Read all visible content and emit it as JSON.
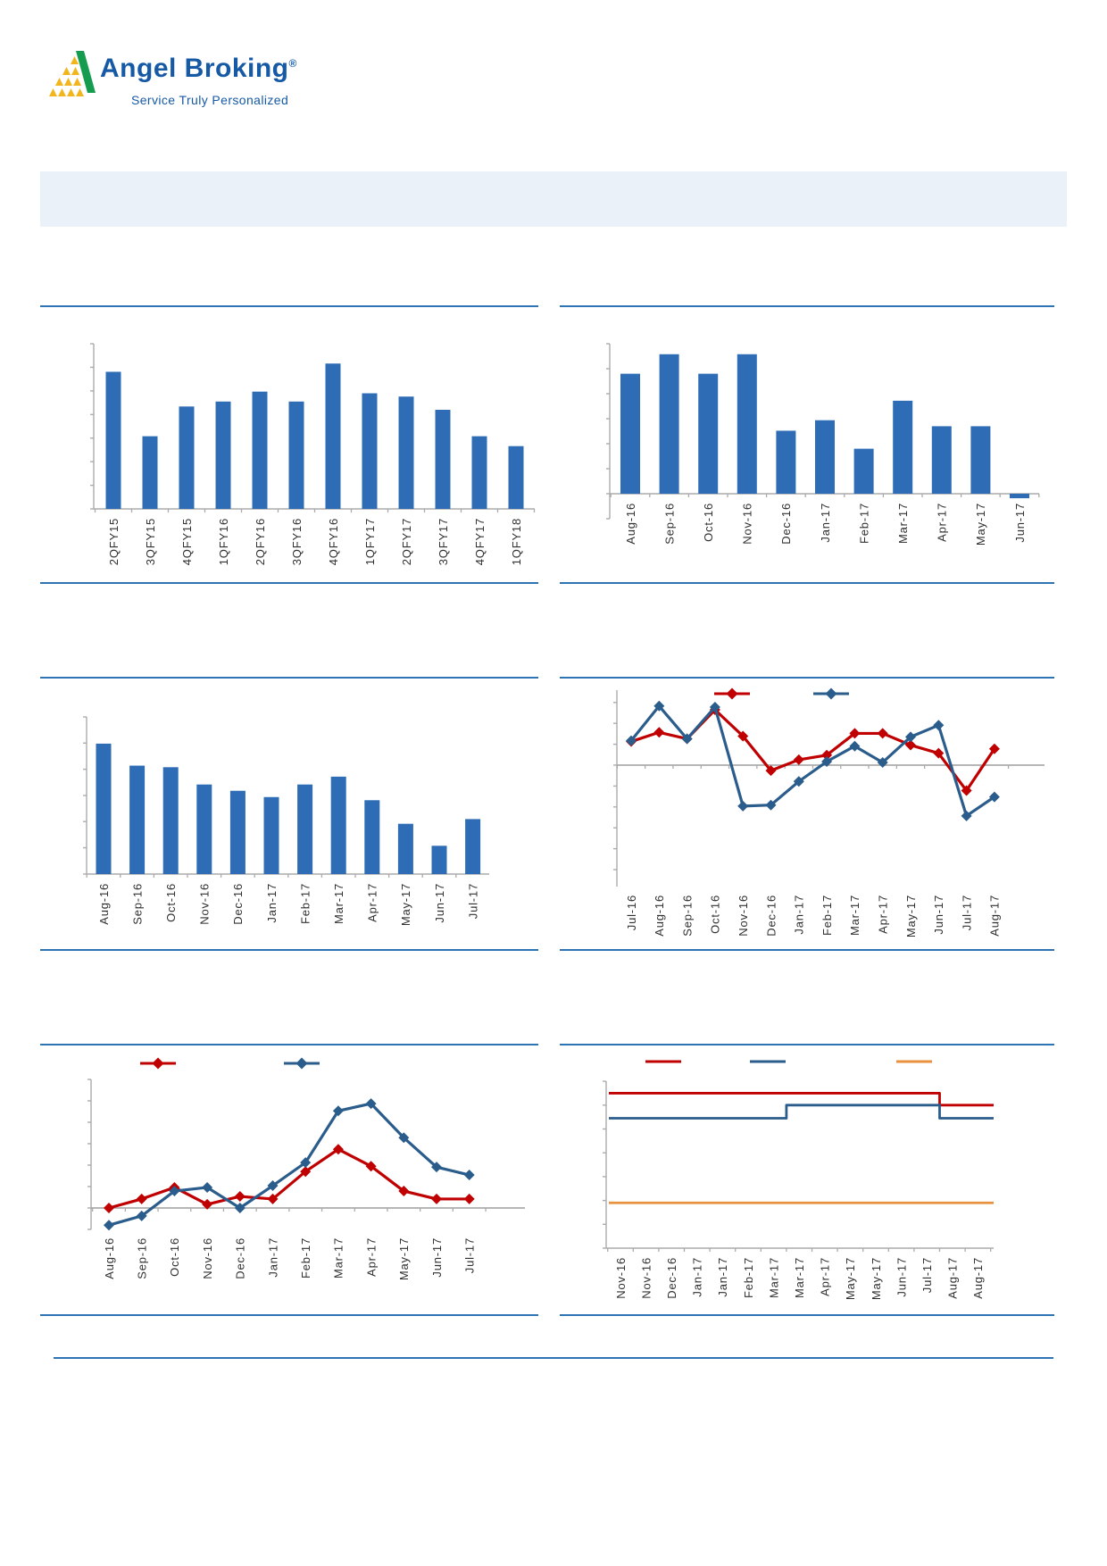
{
  "header": {
    "brand_name": "Angel Broking",
    "registered_mark": "®",
    "tagline": "Service Truly Personalized",
    "brand_color": "#1659A5",
    "logo_yellow": "#F2B51C",
    "logo_green": "#169C4E"
  },
  "banner": {
    "text": "",
    "background": "#EBF1F8"
  },
  "colors": {
    "separator": "#2E74B5",
    "bar_blue": "#2E6CB5",
    "series_red": "#C00000",
    "series_blue": "#2A5C8C",
    "series_orange": "#E8913F",
    "axis_gray": "#ABABAB",
    "zero_line_gray": "#9E9E9E",
    "label_text": "#303030"
  },
  "chart_data": [
    {
      "id": "top-left",
      "type": "bar",
      "title": "",
      "categories": [
        "2QFY15",
        "3QFY15",
        "4QFY15",
        "1QFY16",
        "2QFY16",
        "3QFY16",
        "4QFY16",
        "1QFY17",
        "2QFY17",
        "3QFY17",
        "4QFY17",
        "1QFY18"
      ],
      "values": [
        0.83,
        0.44,
        0.62,
        0.65,
        0.71,
        0.65,
        0.88,
        0.7,
        0.68,
        0.6,
        0.44,
        0.38
      ],
      "values_unit": "fraction_of_axis_height",
      "bar_color": "#2E6CB5",
      "ylim": [
        0,
        1
      ],
      "yticks_count": 7,
      "y_tick_labels_visible": false
    },
    {
      "id": "top-right",
      "type": "bar",
      "title": "",
      "categories": [
        "Aug-16",
        "Sep-16",
        "Oct-16",
        "Nov-16",
        "Dec-16",
        "Jan-17",
        "Feb-17",
        "Mar-17",
        "Apr-17",
        "May-17",
        "Jun-17"
      ],
      "values": [
        0.8,
        0.93,
        0.8,
        0.93,
        0.42,
        0.49,
        0.3,
        0.62,
        0.45,
        0.45,
        -0.03
      ],
      "values_unit": "fraction_of_axis_height",
      "bar_color": "#2E6CB5",
      "ylim": [
        -0.17,
        1
      ],
      "yticks_count": 6,
      "y_tick_labels_visible": false
    },
    {
      "id": "middle-left",
      "type": "bar",
      "title": "",
      "categories": [
        "Aug-16",
        "Sep-16",
        "Oct-16",
        "Nov-16",
        "Dec-16",
        "Jan-17",
        "Feb-17",
        "Mar-17",
        "Apr-17",
        "May-17",
        "Jun-17",
        "Jul-17"
      ],
      "values": [
        0.83,
        0.69,
        0.68,
        0.57,
        0.53,
        0.49,
        0.57,
        0.62,
        0.47,
        0.32,
        0.18,
        0.35
      ],
      "values_unit": "fraction_of_axis_height",
      "bar_color": "#2E6CB5",
      "ylim": [
        0,
        1
      ],
      "yticks_count": 6,
      "y_tick_labels_visible": false
    },
    {
      "id": "middle-right",
      "type": "line",
      "title": "",
      "categories": [
        "Jul-16",
        "Aug-16",
        "Sep-16",
        "Oct-16",
        "Nov-16",
        "Dec-16",
        "Jan-17",
        "Feb-17",
        "Mar-17",
        "Apr-17",
        "May-17",
        "Jun-17",
        "Jul-17",
        "Aug-17"
      ],
      "series": [
        {
          "color": "#C00000",
          "marker": "diamond",
          "values": [
            1.13,
            1.57,
            1.26,
            2.65,
            1.39,
            -0.26,
            0.26,
            0.48,
            1.52,
            1.52,
            0.96,
            0.57,
            -1.22,
            0.78
          ]
        },
        {
          "color": "#2A5C8C",
          "marker": "diamond",
          "values": [
            1.17,
            2.83,
            1.26,
            2.78,
            -1.96,
            -1.91,
            -0.78,
            0.17,
            0.91,
            0.13,
            1.35,
            1.91,
            -2.43,
            -1.52
          ]
        }
      ],
      "values_unit": "axis_tick_units",
      "ylim": [
        -5.8,
        3.6
      ],
      "zero_line": true,
      "legend_labels_visible": false
    },
    {
      "id": "bottom-left",
      "type": "line",
      "title": "",
      "categories": [
        "Aug-16",
        "Sep-16",
        "Oct-16",
        "Nov-16",
        "Dec-16",
        "Jan-17",
        "Feb-17",
        "Mar-17",
        "Apr-17",
        "May-17",
        "Jun-17",
        "Jul-17"
      ],
      "series": [
        {
          "color": "#C00000",
          "marker": "diamond",
          "values": [
            0.0,
            0.42,
            0.96,
            0.17,
            0.54,
            0.42,
            1.7,
            2.74,
            1.95,
            0.79,
            0.42,
            0.42
          ]
        },
        {
          "color": "#2A5C8C",
          "marker": "diamond",
          "values": [
            -0.8,
            -0.37,
            0.79,
            0.96,
            0.0,
            1.04,
            2.12,
            4.53,
            4.87,
            3.28,
            1.91,
            1.54
          ]
        }
      ],
      "values_unit": "axis_tick_units",
      "ylim": [
        -1,
        6
      ],
      "zero_line": true,
      "legend_labels_visible": false
    },
    {
      "id": "bottom-right",
      "type": "line",
      "step": true,
      "title": "",
      "categories": [
        "Nov-16",
        "Nov-16",
        "Dec-16",
        "Jan-17",
        "Jan-17",
        "Feb-17",
        "Mar-17",
        "Mar-17",
        "Apr-17",
        "May-17",
        "May-17",
        "Jun-17",
        "Jul-17",
        "Aug-17",
        "Aug-17"
      ],
      "series": [
        {
          "color": "#C00000",
          "marker": "none",
          "values": [
            6.5,
            6.5,
            6.5,
            6.5,
            6.5,
            6.5,
            6.5,
            6.5,
            6.5,
            6.5,
            6.5,
            6.5,
            6.5,
            6.0,
            6.0
          ]
        },
        {
          "color": "#2A5C8C",
          "marker": "none",
          "values": [
            5.45,
            5.45,
            5.45,
            5.45,
            5.45,
            5.45,
            5.45,
            6.0,
            6.0,
            6.0,
            6.0,
            6.0,
            6.0,
            5.45,
            5.45
          ]
        },
        {
          "color": "#E8913F",
          "marker": "none",
          "values": [
            1.9,
            1.9,
            1.9,
            1.9,
            1.9,
            1.9,
            1.9,
            1.9,
            1.9,
            1.9,
            1.9,
            1.9,
            1.9,
            1.9,
            1.9
          ]
        }
      ],
      "values_unit": "axis_tick_units",
      "ylim": [
        0,
        7
      ],
      "zero_line": false,
      "legend_labels_visible": false
    }
  ]
}
